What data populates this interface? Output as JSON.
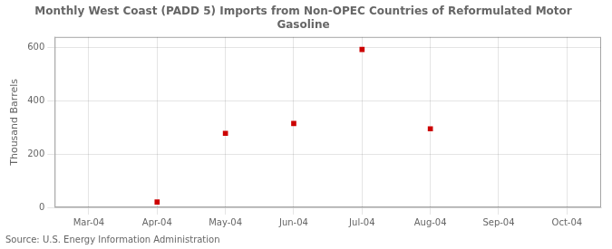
{
  "chart_data": {
    "type": "scatter",
    "title": "Monthly West Coast (PADD 5) Imports from Non-OPEC Countries of Reformulated Motor\nGasoline",
    "ylabel": "Thousand Barrels",
    "source": "Source: U.S. Energy Information Administration",
    "categories": [
      "Mar-04",
      "Apr-04",
      "May-04",
      "Jun-04",
      "Jul-04",
      "Aug-04",
      "Sep-04",
      "Oct-04"
    ],
    "values": [
      null,
      20,
      278,
      315,
      593,
      295,
      null,
      null
    ],
    "color": "#cc0000",
    "marker": "square",
    "ylim": [
      0,
      640
    ],
    "yticks": [
      0,
      200,
      400,
      600
    ],
    "grid": true
  }
}
